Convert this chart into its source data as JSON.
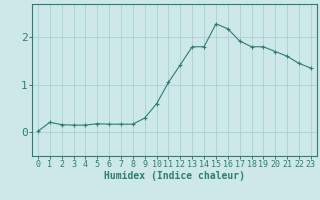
{
  "xlabel": "Humidex (Indice chaleur)",
  "ylabel": "",
  "x": [
    0,
    1,
    2,
    3,
    4,
    5,
    6,
    7,
    8,
    9,
    10,
    11,
    12,
    13,
    14,
    15,
    16,
    17,
    18,
    19,
    20,
    21,
    22,
    23
  ],
  "y": [
    0.02,
    0.21,
    0.16,
    0.15,
    0.15,
    0.18,
    0.17,
    0.17,
    0.17,
    0.3,
    0.6,
    1.05,
    1.42,
    1.8,
    1.8,
    2.28,
    2.18,
    1.92,
    1.8,
    1.8,
    1.7,
    1.6,
    1.45,
    1.35
  ],
  "line_color": "#2e7d6e",
  "marker": "+",
  "marker_size": 3,
  "bg_color": "#cce8e8",
  "grid_color": "#b0d4d4",
  "axis_color": "#2e7d6e",
  "ylim": [
    -0.5,
    2.7
  ],
  "xlim": [
    -0.5,
    23.5
  ],
  "yticks": [
    0,
    1,
    2
  ],
  "xticks": [
    0,
    1,
    2,
    3,
    4,
    5,
    6,
    7,
    8,
    9,
    10,
    11,
    12,
    13,
    14,
    15,
    16,
    17,
    18,
    19,
    20,
    21,
    22,
    23
  ],
  "xlabel_fontsize": 7,
  "tick_fontsize": 6,
  "ytick_fontsize": 8
}
